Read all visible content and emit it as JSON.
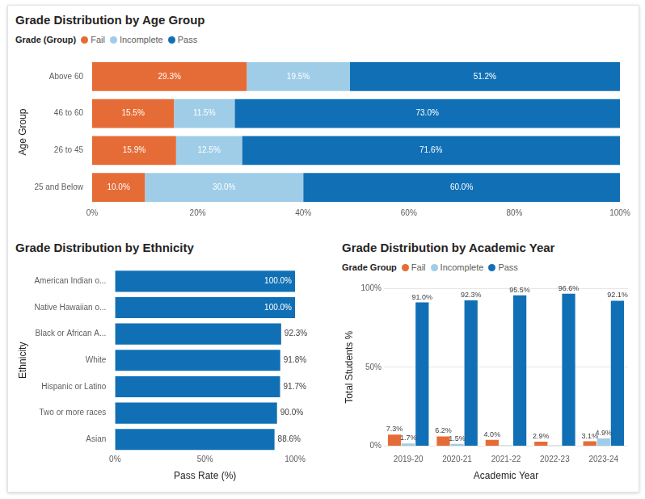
{
  "chart_data": [
    {
      "type": "bar",
      "title": "Grade Distribution by Age Group",
      "legend_title": "Grade (Group)",
      "legend": "top left",
      "orientation": "horizontal",
      "stacked": true,
      "data_labels": true,
      "grid": false,
      "y_label": "Age Group",
      "categories": [
        "Above 60",
        "46 to 60",
        "26 to 45",
        "25 and Below"
      ],
      "series": [
        {
          "name": "Fail",
          "color": "#e66c37",
          "values": [
            29.3,
            15.5,
            15.9,
            10.0
          ],
          "value_labels": [
            "29.3%",
            "15.5%",
            "15.9%",
            "10.0%"
          ]
        },
        {
          "name": "Incomplete",
          "color": "#9fcde8",
          "values": [
            19.5,
            11.5,
            12.5,
            30.0
          ],
          "value_labels": [
            "19.5%",
            "11.5%",
            "12.5%",
            "30.0%"
          ]
        },
        {
          "name": "Pass",
          "color": "#1170b5",
          "values": [
            51.2,
            73.0,
            71.6,
            60.0
          ],
          "value_labels": [
            "51.2%",
            "73.0%",
            "71.6%",
            "60.0%"
          ]
        }
      ],
      "xlim": [
        0,
        100
      ],
      "xticks": [
        {
          "value": 0,
          "label": "0%"
        },
        {
          "value": 20,
          "label": "20%"
        },
        {
          "value": 40,
          "label": "40%"
        },
        {
          "value": 60,
          "label": "60%"
        },
        {
          "value": 80,
          "label": "80%"
        },
        {
          "value": 100,
          "label": "100%"
        }
      ]
    },
    {
      "type": "bar",
      "title": "Grade Distribution by Ethnicity",
      "orientation": "horizontal",
      "data_labels": true,
      "grid": false,
      "color": "#1170b5",
      "x_label": "Pass Rate (%)",
      "y_label": "Ethnicity",
      "categories": [
        "American Indian o...",
        "Native Hawaiian o...",
        "Black or African A...",
        "White",
        "Hispanic or Latino",
        "Two or more races",
        "Asian"
      ],
      "values": [
        100.0,
        100.0,
        92.3,
        91.8,
        91.7,
        90.0,
        88.6
      ],
      "value_labels": [
        "100.0%",
        "100.0%",
        "92.3%",
        "91.8%",
        "91.7%",
        "90.0%",
        "88.6%"
      ],
      "xlim": [
        0,
        100
      ],
      "xticks": [
        {
          "value": 0,
          "label": "0%"
        },
        {
          "value": 50,
          "label": "50%"
        },
        {
          "value": 100,
          "label": "100%"
        }
      ]
    },
    {
      "type": "bar",
      "title": "Grade Distribution by Academic Year",
      "legend_title": "Grade Group",
      "legend": "top left",
      "data_labels": true,
      "grid": true,
      "x_label": "Academic Year",
      "y_label": "Total Students %",
      "categories": [
        "2019-20",
        "2020-21",
        "2021-22",
        "2022-23",
        "2023-24"
      ],
      "series": [
        {
          "name": "Fail",
          "color": "#e66c37",
          "values": [
            7.3,
            6.2,
            4.0,
            2.9,
            3.1
          ],
          "value_labels": [
            "7.3%",
            "6.2%",
            "4.0%",
            "2.9%",
            "3.1%"
          ]
        },
        {
          "name": "Incomplete",
          "color": "#9fcde8",
          "values": [
            1.7,
            1.5,
            0.5,
            0.5,
            4.9
          ],
          "value_labels": [
            "1.7%",
            "1.5%",
            null,
            null,
            "4.9%"
          ]
        },
        {
          "name": "Pass",
          "color": "#1170b5",
          "values": [
            91.0,
            92.3,
            95.5,
            96.6,
            92.1
          ],
          "value_labels": [
            "91.0%",
            "92.3%",
            "95.5%",
            "96.6%",
            "92.1%"
          ]
        }
      ],
      "ylim": [
        0,
        100
      ],
      "yticks": [
        {
          "value": 0,
          "label": "0%"
        },
        {
          "value": 50,
          "label": "50%"
        },
        {
          "value": 100,
          "label": "100%"
        }
      ]
    }
  ]
}
